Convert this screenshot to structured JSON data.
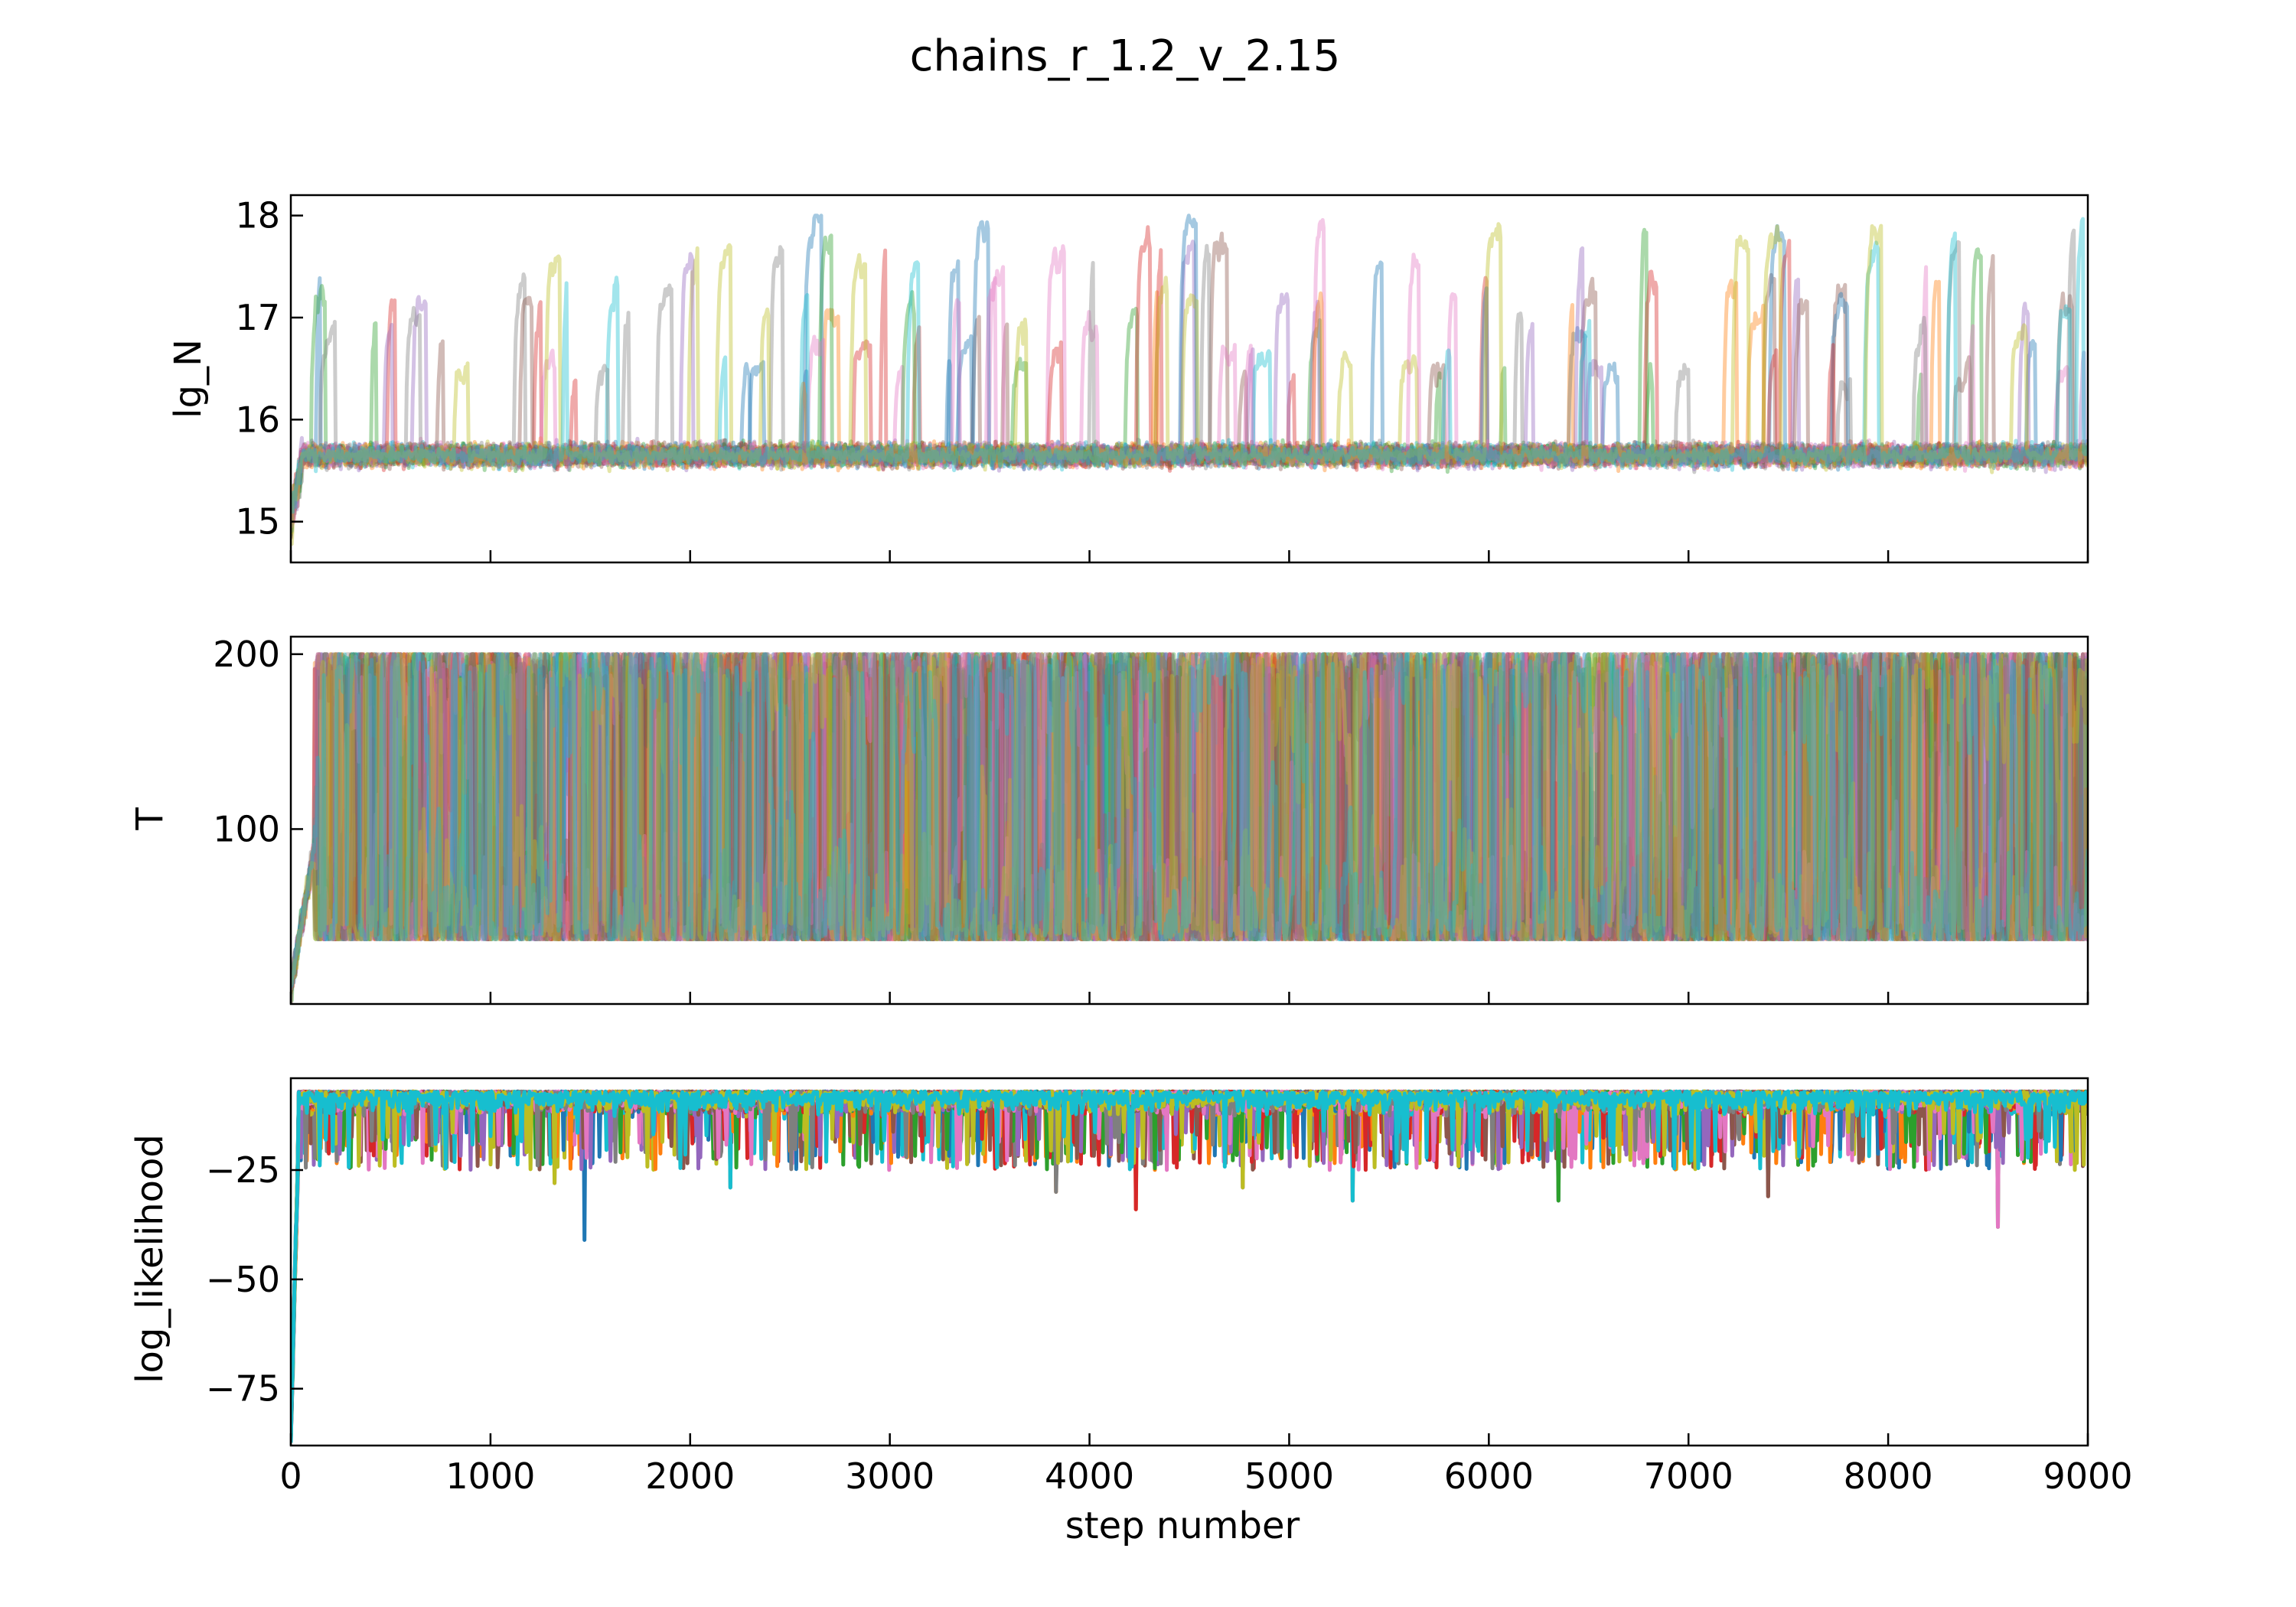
{
  "chart_data": {
    "type": "line",
    "title": "chains_r_1.2_v_2.15",
    "xlabel": "step number",
    "xlim": [
      0,
      9000
    ],
    "x_ticks": [
      "0",
      "1000",
      "2000",
      "3000",
      "4000",
      "5000",
      "6000",
      "7000",
      "8000",
      "9000"
    ],
    "grid": false,
    "legend": "none",
    "panels": [
      {
        "ylabel": "lg_N",
        "ylim": [
          14.6,
          18.2
        ],
        "y_ticks": [
          {
            "value": 15,
            "label": "15"
          },
          {
            "value": 16,
            "label": "16"
          },
          {
            "value": 17,
            "label": "17"
          },
          {
            "value": 18,
            "label": "18"
          }
        ],
        "walkers": 20,
        "alpha": 0.4,
        "burn_in": {
          "start": 15.0,
          "steps": 60
        },
        "typical_band": [
          15.4,
          15.9
        ],
        "upper_bound": 18.0,
        "excursion_fraction": 0.0045
      },
      {
        "ylabel": "T",
        "ylim": [
          0,
          210
        ],
        "y_ticks": [
          {
            "value": 100,
            "label": "100"
          },
          {
            "value": 200,
            "label": "200"
          }
        ],
        "walkers": 20,
        "alpha": 0.4,
        "burn_in": {
          "start": 10,
          "steps": 120
        },
        "typical_band": [
          37,
          200
        ],
        "lower_bound": 37,
        "upper_bound": 200
      },
      {
        "ylabel": "log_likelihood",
        "ylim": [
          -88,
          -4
        ],
        "y_ticks": [
          {
            "value": -25,
            "label": "−25"
          },
          {
            "value": -50,
            "label": "−50"
          },
          {
            "value": -75,
            "label": "−75"
          }
        ],
        "walkers": 20,
        "alpha": 1.0,
        "burn_in": {
          "start": -85,
          "steps": 40
        },
        "typical_band": [
          -16,
          -7
        ],
        "dips": [
          {
            "step": 1470,
            "value": -41
          },
          {
            "step": 4230,
            "value": -34
          },
          {
            "step": 8550,
            "value": -38
          },
          {
            "step": 5320,
            "value": -32
          },
          {
            "step": 6350,
            "value": -32
          },
          {
            "step": 7400,
            "value": -31
          },
          {
            "step": 1320,
            "value": -28
          },
          {
            "step": 3830,
            "value": -30
          },
          {
            "step": 4770,
            "value": -29
          },
          {
            "step": 2200,
            "value": -29
          }
        ]
      }
    ],
    "colors": [
      "#1f77b4",
      "#ff7f0e",
      "#2ca02c",
      "#d62728",
      "#9467bd",
      "#8c564b",
      "#e377c2",
      "#7f7f7f",
      "#bcbd22",
      "#17becf"
    ]
  }
}
